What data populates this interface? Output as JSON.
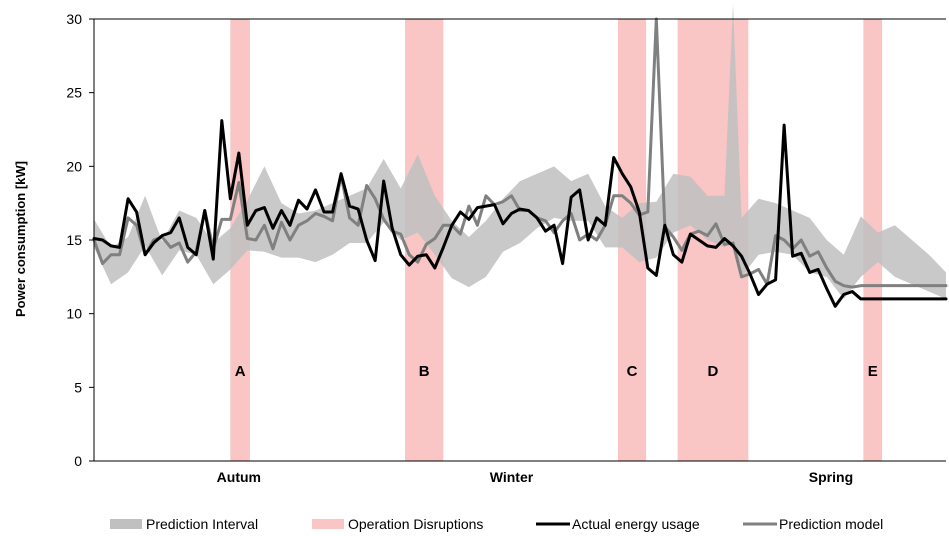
{
  "chart_data": {
    "type": "line",
    "ylabel": "Power consumption [kW]",
    "ylim": [
      0,
      30
    ],
    "yticks": [
      0,
      5,
      10,
      15,
      20,
      25,
      30
    ],
    "x_range": [
      0,
      100
    ],
    "grid": false,
    "legend_position": "bottom",
    "categories": [
      {
        "label": "Autum",
        "x": 17
      },
      {
        "label": "Winter",
        "x": 49
      },
      {
        "label": "Spring",
        "x": 86.5
      }
    ],
    "disruptions": [
      {
        "label": "A",
        "x_start": 16,
        "x_end": 18.3
      },
      {
        "label": "B",
        "x_start": 36.5,
        "x_end": 41
      },
      {
        "label": "C",
        "x_start": 61.5,
        "x_end": 64.8
      },
      {
        "label": "D",
        "x_start": 68.5,
        "x_end": 76.8
      },
      {
        "label": "E",
        "x_start": 90.3,
        "x_end": 92.5
      }
    ],
    "series": [
      {
        "name": "Prediction Interval",
        "type": "band",
        "color": "#c0c0c0",
        "x": [
          0,
          2,
          4,
          6,
          8,
          10,
          12,
          14,
          16,
          18,
          20,
          22,
          24,
          26,
          28,
          30,
          32,
          34,
          36,
          38,
          40,
          42,
          44,
          46,
          48,
          50,
          52,
          54,
          56,
          58,
          60,
          62,
          64,
          66,
          68,
          70,
          72,
          74,
          75,
          76,
          78,
          80,
          82,
          84,
          86,
          88,
          90,
          92,
          94,
          96,
          98,
          100
        ],
        "lower": [
          14.5,
          12.0,
          12.8,
          14.6,
          12.6,
          14.3,
          14.0,
          12.0,
          13.0,
          14.3,
          14.2,
          13.8,
          13.8,
          13.5,
          14.0,
          14.8,
          14.8,
          16.2,
          15.0,
          15.5,
          14.0,
          12.4,
          11.8,
          12.5,
          14.2,
          14.8,
          15.8,
          16.5,
          16.3,
          16.3,
          14.5,
          14.5,
          13.5,
          13.8,
          15.5,
          16.0,
          15.0,
          14.5,
          15.0,
          12.5,
          14.0,
          14.2,
          14.0,
          12.8,
          12.5,
          11.0,
          12.5,
          13.5,
          12.5,
          12.0,
          11.5,
          11.0
        ],
        "upper": [
          16.4,
          14.5,
          15.2,
          18.0,
          14.9,
          17.0,
          16.5,
          14.8,
          15.8,
          17.7,
          20.0,
          17.5,
          16.8,
          17.0,
          17.5,
          18.0,
          18.5,
          20.5,
          18.5,
          20.8,
          18.0,
          16.3,
          15.2,
          16.3,
          17.8,
          19.0,
          19.5,
          20.0,
          19.0,
          19.5,
          17.3,
          16.5,
          17.5,
          17.6,
          19.5,
          19.3,
          18.0,
          18.0,
          31.0,
          16.5,
          17.8,
          17.5,
          17.0,
          16.5,
          15.0,
          14.0,
          16.6,
          15.5,
          16.0,
          15.0,
          14.0,
          12.8
        ]
      },
      {
        "name": "Actual energy usage",
        "type": "line",
        "color": "#000000",
        "x": [
          0,
          1,
          2,
          3,
          4,
          5,
          6,
          7,
          8,
          9,
          10,
          11,
          12,
          13,
          14,
          15,
          16,
          17,
          18,
          19,
          20,
          21,
          22,
          23,
          24,
          25,
          26,
          27,
          28,
          29,
          30,
          31,
          32,
          33,
          34,
          35,
          36,
          37,
          38,
          39,
          40,
          41,
          42,
          43,
          44,
          45,
          46,
          47,
          48,
          49,
          50,
          51,
          52,
          53,
          54,
          55,
          56,
          57,
          58,
          59,
          60,
          61,
          62,
          63,
          64,
          65,
          66,
          67,
          68,
          69,
          70,
          71,
          72,
          73,
          74,
          75,
          76,
          77,
          78,
          79,
          80,
          81,
          82,
          83,
          84,
          85,
          86,
          87,
          88,
          89,
          90,
          91,
          92,
          93,
          94,
          95,
          96,
          97,
          98,
          99,
          100
        ],
        "y": [
          15.1,
          15.0,
          14.6,
          14.5,
          17.8,
          16.9,
          14.0,
          14.8,
          15.3,
          15.5,
          16.5,
          14.5,
          14.0,
          17.0,
          13.7,
          23.1,
          17.8,
          20.9,
          16.0,
          17.0,
          17.2,
          15.8,
          17.0,
          16.0,
          17.7,
          17.1,
          18.4,
          16.9,
          16.9,
          19.5,
          17.3,
          17.1,
          15.0,
          13.6,
          19.0,
          15.8,
          14.0,
          13.3,
          13.9,
          14.0,
          13.1,
          14.5,
          16.0,
          16.9,
          16.4,
          17.2,
          17.3,
          17.4,
          16.1,
          16.8,
          17.1,
          17.0,
          16.5,
          15.6,
          16.0,
          13.4,
          17.9,
          18.4,
          15.0,
          16.5,
          16.0,
          20.6,
          19.5,
          18.6,
          16.9,
          13.1,
          12.6,
          16.0,
          14.0,
          13.5,
          15.4,
          15.0,
          14.6,
          14.5,
          15.1,
          14.6,
          13.9,
          12.7,
          11.3,
          12.0,
          12.3,
          22.8,
          13.9,
          14.1,
          12.8,
          13.0,
          11.7,
          10.5,
          11.3,
          11.5,
          11.0,
          11.0,
          11.0,
          11.0,
          11.0,
          11.0,
          11.0,
          11.0,
          11.0,
          11.0,
          11.0
        ]
      },
      {
        "name": "Prediction model",
        "type": "line",
        "color": "#808080",
        "x": [
          0,
          1,
          2,
          3,
          4,
          5,
          6,
          7,
          8,
          9,
          10,
          11,
          12,
          13,
          14,
          15,
          16,
          17,
          18,
          19,
          20,
          21,
          22,
          23,
          24,
          25,
          26,
          27,
          28,
          29,
          30,
          31,
          32,
          33,
          34,
          35,
          36,
          37,
          38,
          39,
          40,
          41,
          42,
          43,
          44,
          45,
          46,
          47,
          48,
          49,
          50,
          51,
          52,
          53,
          54,
          55,
          56,
          57,
          58,
          59,
          60,
          61,
          62,
          63,
          64,
          65,
          66,
          67,
          68,
          69,
          70,
          71,
          72,
          73,
          74,
          75,
          76,
          77,
          78,
          79,
          80,
          81,
          82,
          83,
          84,
          85,
          86,
          87,
          88,
          89,
          90,
          91,
          92,
          93,
          94,
          95,
          96,
          97,
          98,
          99,
          100
        ],
        "y": [
          15.0,
          13.4,
          14.0,
          14.0,
          16.5,
          16.0,
          14.0,
          15.0,
          15.2,
          14.5,
          14.8,
          13.5,
          14.2,
          17.0,
          14.4,
          16.4,
          16.4,
          18.9,
          15.1,
          15.0,
          16.0,
          14.4,
          16.2,
          15.0,
          16.0,
          16.3,
          16.8,
          16.6,
          16.3,
          19.4,
          16.5,
          16.0,
          18.7,
          17.8,
          16.4,
          15.6,
          15.4,
          14.0,
          13.5,
          14.7,
          15.1,
          16.0,
          16.0,
          15.4,
          17.3,
          16.0,
          18.0,
          17.4,
          17.6,
          18.0,
          17.0,
          17.0,
          16.5,
          16.3,
          15.5,
          16.3,
          16.8,
          15.0,
          15.4,
          15.0,
          16.0,
          18.0,
          18.0,
          17.5,
          16.7,
          16.9,
          30.0,
          15.9,
          15.2,
          14.3,
          15.4,
          15.6,
          15.3,
          16.1,
          14.7,
          14.8,
          12.5,
          12.7,
          13.0,
          12.0,
          15.3,
          15.0,
          14.4,
          15.0,
          13.9,
          14.2,
          13.1,
          12.2,
          11.9,
          11.8,
          11.9,
          11.9,
          11.9,
          11.9,
          11.9,
          11.9,
          11.9,
          11.9,
          11.9,
          11.9,
          11.9
        ]
      }
    ],
    "disruption_color": "#f9c5c5",
    "legend": [
      {
        "label": "Prediction Interval",
        "kind": "band",
        "color": "#c0c0c0"
      },
      {
        "label": "Operation Disruptions",
        "kind": "band",
        "color": "#f9c5c5"
      },
      {
        "label": "Actual energy usage",
        "kind": "line",
        "color": "#000000"
      },
      {
        "label": "Prediction model",
        "kind": "line",
        "color": "#808080"
      }
    ]
  }
}
